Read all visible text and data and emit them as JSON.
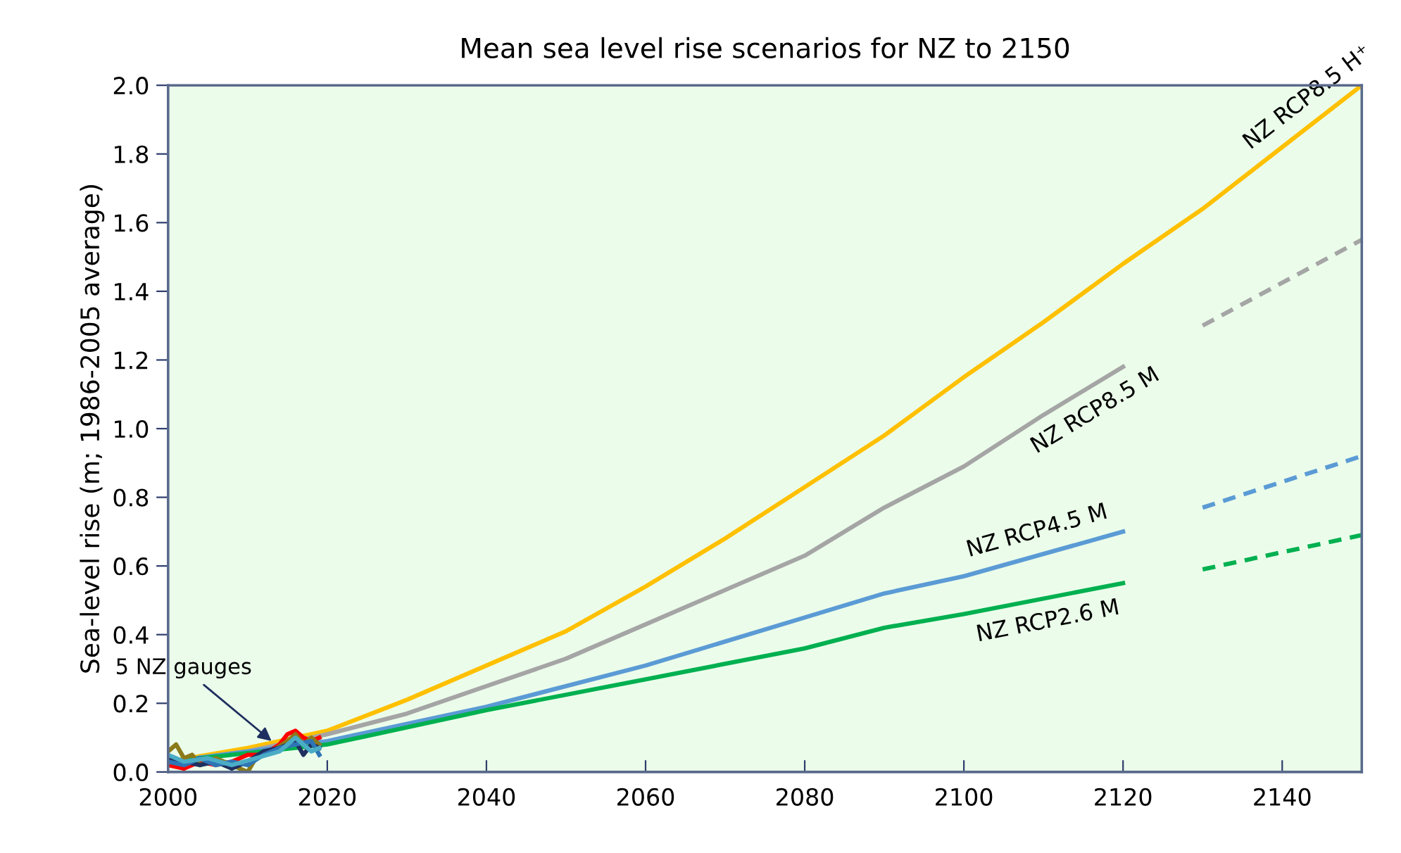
{
  "chart_data": {
    "type": "line",
    "title": "Mean sea level rise scenarios for NZ to 2150",
    "ylabel": "Sea-level rise (m; 1986-2005 average)",
    "xlim": [
      2000,
      2150
    ],
    "xticks": [
      2000,
      2020,
      2040,
      2060,
      2080,
      2100,
      2120,
      2140
    ],
    "ylim": [
      0,
      2
    ],
    "yticks": [
      {
        "value": 0,
        "label": "0.0"
      },
      {
        "value": 0.2,
        "label": "0.2"
      },
      {
        "value": 0.4,
        "label": "0.4"
      },
      {
        "value": 0.6,
        "label": "0.6"
      },
      {
        "value": 0.8,
        "label": "0.8"
      },
      {
        "value": 1.0,
        "label": "1.0"
      },
      {
        "value": 1.2,
        "label": "1.2"
      },
      {
        "value": 1.4,
        "label": "1.4"
      },
      {
        "value": 1.6,
        "label": "1.6"
      },
      {
        "value": 1.8,
        "label": "1.8"
      },
      {
        "value": 2.0,
        "label": "2.0"
      }
    ],
    "grid": false,
    "legend": false,
    "marker": "none",
    "annotations": [
      {
        "text": "5 NZ gauges",
        "x": 2013,
        "y": 0.09
      }
    ],
    "series": [
      {
        "name": "NZ RCP8.5 H⁺",
        "color": "#ffc000",
        "x": [
          2000,
          2010,
          2020,
          2030,
          2040,
          2050,
          2060,
          2070,
          2080,
          2090,
          2100,
          2110,
          2120,
          2130,
          2140,
          2150
        ],
        "values": [
          0.03,
          0.07,
          0.12,
          0.21,
          0.31,
          0.41,
          0.54,
          0.68,
          0.83,
          0.98,
          1.15,
          1.31,
          1.48,
          1.64,
          1.82,
          2.0
        ]
      },
      {
        "name": "NZ RCP8.5 M",
        "color": "#a5a5a5",
        "x": [
          2000,
          2010,
          2020,
          2030,
          2040,
          2050,
          2060,
          2070,
          2080,
          2090,
          2100,
          2110,
          2120
        ],
        "values": [
          0.03,
          0.06,
          0.11,
          0.17,
          0.25,
          0.33,
          0.43,
          0.53,
          0.63,
          0.77,
          0.89,
          1.04,
          1.18
        ]
      },
      {
        "name": "NZ RCP4.5 M",
        "color": "#5b9bd5",
        "x": [
          2000,
          2020,
          2040,
          2060,
          2080,
          2090,
          2100,
          2120
        ],
        "values": [
          0.03,
          0.09,
          0.19,
          0.31,
          0.45,
          0.52,
          0.57,
          0.7
        ]
      },
      {
        "name": "NZ RCP2.6 M",
        "color": "#00b050",
        "x": [
          2000,
          2020,
          2040,
          2060,
          2080,
          2090,
          2100,
          2120
        ],
        "values": [
          0.03,
          0.08,
          0.18,
          0.27,
          0.36,
          0.42,
          0.46,
          0.55
        ]
      },
      {
        "color": "#a5a5a5",
        "line_style": "dashed",
        "x": [
          2130,
          2150
        ],
        "values": [
          1.3,
          1.55
        ]
      },
      {
        "color": "#5b9bd5",
        "line_style": "dashed",
        "x": [
          2130,
          2150
        ],
        "values": [
          0.77,
          0.92
        ]
      },
      {
        "color": "#00b050",
        "line_style": "dashed",
        "x": [
          2130,
          2150
        ],
        "values": [
          0.59,
          0.69
        ]
      },
      {
        "color": "#ff0000",
        "x": [
          2000,
          2002,
          2004,
          2006,
          2008,
          2010,
          2012,
          2014,
          2015,
          2016,
          2017,
          2018,
          2019
        ],
        "values": [
          0.02,
          0.01,
          0.03,
          0.02,
          0.03,
          0.05,
          0.05,
          0.08,
          0.11,
          0.12,
          0.1,
          0.09,
          0.1
        ]
      },
      {
        "color": "#8b7a1a",
        "x": [
          2000,
          2001,
          2002,
          2003,
          2004,
          2006,
          2008,
          2010,
          2011,
          2013,
          2015,
          2016,
          2017,
          2018,
          2019
        ],
        "values": [
          0.06,
          0.08,
          0.04,
          0.05,
          0.02,
          0.04,
          0.02,
          0.0,
          0.04,
          0.06,
          0.09,
          0.11,
          0.08,
          0.1,
          0.08
        ]
      },
      {
        "color": "#1f2f5f",
        "x": [
          2000,
          2002,
          2004,
          2006,
          2008,
          2010,
          2012,
          2014,
          2016,
          2017,
          2018,
          2019
        ],
        "values": [
          0.04,
          0.03,
          0.02,
          0.03,
          0.01,
          0.03,
          0.06,
          0.07,
          0.09,
          0.05,
          0.08,
          0.07
        ]
      },
      {
        "color": "#2e75b6",
        "x": [
          2000,
          2002,
          2004,
          2006,
          2008,
          2010,
          2012,
          2014,
          2016,
          2018,
          2019
        ],
        "values": [
          0.03,
          0.02,
          0.04,
          0.02,
          0.03,
          0.02,
          0.05,
          0.07,
          0.08,
          0.09,
          0.05
        ]
      },
      {
        "color": "#4bacc6",
        "x": [
          2000,
          2002,
          2005,
          2008,
          2011,
          2014,
          2016,
          2018,
          2019
        ],
        "values": [
          0.05,
          0.03,
          0.04,
          0.02,
          0.04,
          0.06,
          0.1,
          0.06,
          0.07
        ]
      }
    ]
  }
}
